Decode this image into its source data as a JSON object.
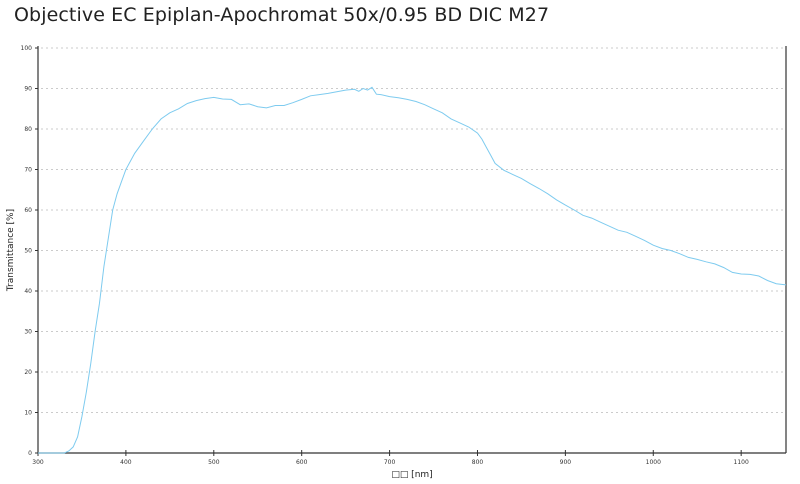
{
  "title": "Objective EC Epiplan-Apochromat 50x/0.95 BD DIC M27",
  "colors": {
    "curve": "#7ecbef",
    "axis": "#333333",
    "grid": "#bbbbbb",
    "text": "#222222"
  },
  "chart_data": {
    "type": "line",
    "title": "Objective EC Epiplan-Apochromat 50x/0.95 BD DIC M27",
    "xlabel": "□□ [nm]",
    "ylabel": "Transmittance [%]",
    "xlim": [
      300,
      1151
    ],
    "ylim": [
      0,
      100
    ],
    "x_ticks": [
      300,
      400,
      500,
      600,
      700,
      800,
      900,
      1000,
      1100
    ],
    "y_ticks": [
      0,
      10,
      20,
      30,
      40,
      50,
      60,
      70,
      80,
      90,
      100
    ],
    "grid": {
      "horizontal": true,
      "style": "dotted"
    },
    "legend": null,
    "series": [
      {
        "name": "Transmittance",
        "x": [
          300,
          310,
          320,
          330,
          335,
          340,
          345,
          350,
          355,
          360,
          365,
          370,
          375,
          380,
          385,
          390,
          395,
          400,
          410,
          420,
          430,
          440,
          450,
          460,
          470,
          480,
          490,
          500,
          510,
          520,
          530,
          540,
          550,
          560,
          570,
          580,
          590,
          600,
          610,
          620,
          630,
          640,
          650,
          660,
          665,
          670,
          675,
          680,
          685,
          690,
          700,
          710,
          720,
          730,
          740,
          750,
          760,
          770,
          780,
          790,
          800,
          805,
          810,
          815,
          820,
          830,
          840,
          850,
          860,
          870,
          880,
          890,
          900,
          910,
          920,
          930,
          940,
          950,
          960,
          970,
          980,
          990,
          1000,
          1010,
          1020,
          1030,
          1040,
          1050,
          1060,
          1070,
          1080,
          1090,
          1100,
          1110,
          1120,
          1130,
          1140,
          1151
        ],
        "values": [
          0,
          0,
          0,
          0,
          0.5,
          1.5,
          4,
          9,
          15,
          22,
          30,
          37,
          46,
          53,
          60,
          64,
          67,
          70,
          74,
          77,
          80,
          82.5,
          84,
          85,
          86.3,
          87,
          87.5,
          87.8,
          87.4,
          87.3,
          86,
          86.2,
          85.5,
          85.2,
          85.8,
          85.8,
          86.5,
          87.3,
          88.2,
          88.5,
          88.8,
          89.2,
          89.6,
          89.8,
          89.3,
          90,
          89.6,
          90.3,
          88.6,
          88.5,
          88,
          87.7,
          87.3,
          86.8,
          86,
          85,
          84,
          82.5,
          81.5,
          80.5,
          79,
          77.5,
          75.5,
          73.5,
          71.5,
          69.8,
          68.8,
          67.8,
          66.5,
          65.3,
          64,
          62.5,
          61.2,
          60,
          58.7,
          58,
          57,
          56,
          55,
          54.5,
          53.5,
          52.5,
          51.3,
          50.5,
          50,
          49.2,
          48.3,
          47.8,
          47.2,
          46.7,
          45.8,
          44.6,
          44.2,
          44.1,
          43.7,
          42.6,
          41.8,
          41.5
        ]
      }
    ]
  }
}
